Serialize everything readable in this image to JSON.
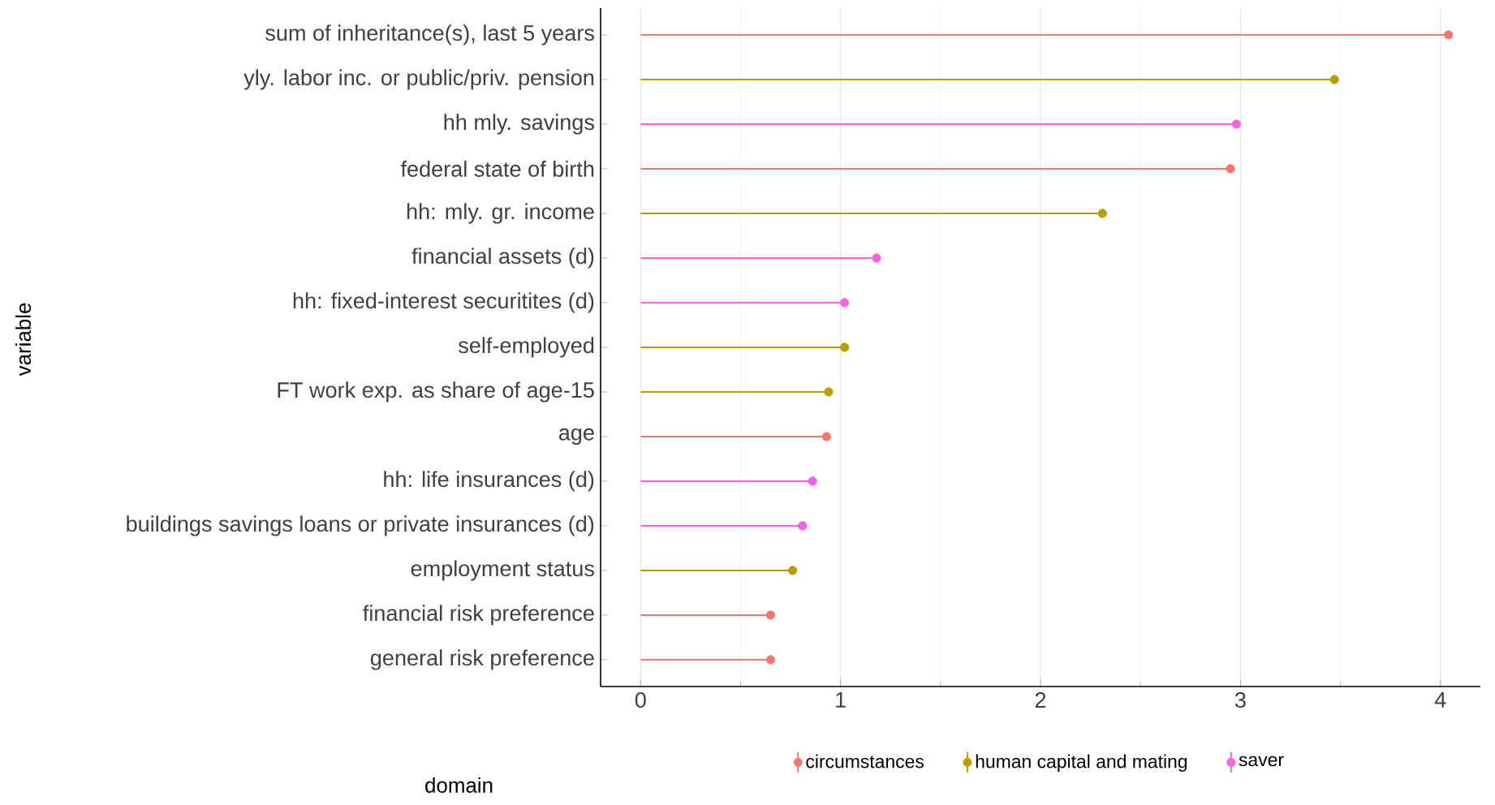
{
  "chart_data": {
    "type": "lollipop",
    "orientation": "horizontal",
    "ylabel": "variable",
    "legend_title": "domain",
    "categories": [
      "sum of inheritance(s), last 5 years",
      "yly. labor inc. or public/priv. pension",
      "hh mly. savings",
      "federal state of birth",
      "hh: mly. gr. income",
      "financial assets (d)",
      "hh: fixed-interest securitites (d)",
      "self-employed",
      "FT work exp. as share of age-15",
      "age",
      "hh: life insurances (d)",
      "buildings savings loans or private insurances (d)",
      "employment status",
      "financial risk preference",
      "general risk preference"
    ],
    "series": [
      {
        "name": "circumstances",
        "color": "#f8766d",
        "values": [
          4.04,
          null,
          null,
          2.95,
          null,
          null,
          null,
          null,
          null,
          0.93,
          null,
          null,
          null,
          0.65,
          0.65
        ]
      },
      {
        "name": "human capital and mating",
        "color": "#b79f00",
        "values": [
          null,
          3.47,
          null,
          null,
          2.31,
          null,
          null,
          1.02,
          0.94,
          null,
          null,
          null,
          0.76,
          null,
          null
        ]
      },
      {
        "name": "saver",
        "color": "#f564e3",
        "values": [
          null,
          null,
          2.98,
          null,
          null,
          1.18,
          1.02,
          null,
          null,
          null,
          0.86,
          0.81,
          null,
          null,
          null
        ]
      }
    ],
    "xlim": [
      -0.2,
      4.2
    ],
    "xticks": [
      0,
      1,
      2,
      3,
      4
    ],
    "grid": "x",
    "legend": "bottom",
    "marker": "circle"
  }
}
